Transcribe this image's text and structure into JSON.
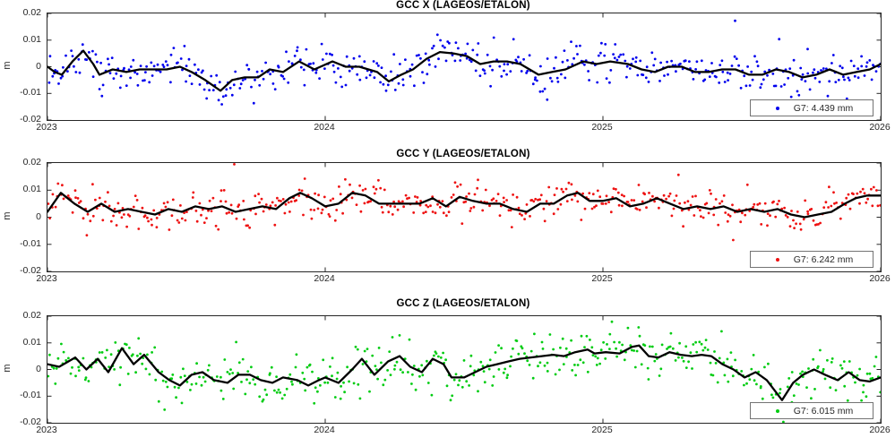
{
  "figure": {
    "background": "#ffffff",
    "axis_color": "#262626",
    "smooth_line_color": "#000000",
    "legend_border_color": "#737373"
  },
  "chart_data": [
    {
      "type": "scatter",
      "title": "GCC X (LAGEOS/ETALON)",
      "ylabel": "m",
      "legend": "G7: 4.439 mm",
      "xlim": [
        2023,
        2026
      ],
      "ylim": [
        -0.02,
        0.02
      ],
      "xticks": [
        2023,
        2024,
        2025,
        2026
      ],
      "xtick_labels": [
        "2023",
        "2024",
        "2025",
        "2026"
      ],
      "yticks": [
        0.02,
        0.01,
        0,
        -0.01,
        -0.02
      ],
      "ytick_labels": [
        "0.02",
        "0.01",
        "0",
        "-0.01",
        "-0.02"
      ],
      "grid": false,
      "legend_position": "bottom-right",
      "scatter": {
        "name": "gcc-x-daily-estimates",
        "color": "#0000ee",
        "count": 480,
        "sigma": 0.0036,
        "outlier_prob": 0.05,
        "outlier_scale": 1.9,
        "seed": 12345,
        "dot_radius": 1.4
      },
      "line": {
        "name": "gcc-x-smoothed",
        "color": "#000000",
        "width": 2.3,
        "points": [
          [
            2023.0,
            0.0
          ],
          [
            2023.026,
            -0.002
          ],
          [
            2023.052,
            -0.003
          ],
          [
            2023.09,
            0.002
          ],
          [
            2023.129,
            0.006
          ],
          [
            2023.165,
            0.001
          ],
          [
            2023.187,
            -0.003
          ],
          [
            2023.235,
            -0.001
          ],
          [
            2023.284,
            -0.002
          ],
          [
            2023.332,
            -0.001
          ],
          [
            2023.381,
            -0.001
          ],
          [
            2023.429,
            -0.001
          ],
          [
            2023.477,
            0.0
          ],
          [
            2023.519,
            -0.002
          ],
          [
            2023.568,
            -0.005
          ],
          [
            2023.623,
            -0.009
          ],
          [
            2023.665,
            -0.005
          ],
          [
            2023.71,
            -0.004
          ],
          [
            2023.758,
            -0.004
          ],
          [
            2023.8,
            -0.001
          ],
          [
            2023.848,
            -0.002
          ],
          [
            2023.906,
            0.002
          ],
          [
            2023.961,
            -0.001
          ],
          [
            2024.026,
            0.002
          ],
          [
            2024.074,
            0.0
          ],
          [
            2024.123,
            0.0
          ],
          [
            2024.187,
            -0.002
          ],
          [
            2024.229,
            -0.0055
          ],
          [
            2024.274,
            -0.003
          ],
          [
            2024.316,
            -0.001
          ],
          [
            2024.365,
            0.003
          ],
          [
            2024.413,
            0.0055
          ],
          [
            2024.461,
            0.005
          ],
          [
            2024.51,
            0.004
          ],
          [
            2024.558,
            0.001
          ],
          [
            2024.606,
            0.002
          ],
          [
            2024.655,
            0.002
          ],
          [
            2024.703,
            0.001
          ],
          [
            2024.768,
            -0.003
          ],
          [
            2024.816,
            -0.002
          ],
          [
            2024.865,
            -0.001
          ],
          [
            2024.929,
            0.002
          ],
          [
            2024.977,
            0.001
          ],
          [
            2025.026,
            0.002
          ],
          [
            2025.09,
            0.001
          ],
          [
            2025.139,
            -0.001
          ],
          [
            2025.187,
            -0.002
          ],
          [
            2025.235,
            0.0
          ],
          [
            2025.284,
            0.0
          ],
          [
            2025.332,
            -0.002
          ],
          [
            2025.381,
            -0.002
          ],
          [
            2025.429,
            -0.001
          ],
          [
            2025.477,
            -0.001
          ],
          [
            2025.526,
            -0.003
          ],
          [
            2025.574,
            -0.003
          ],
          [
            2025.623,
            -0.001
          ],
          [
            2025.671,
            -0.002
          ],
          [
            2025.719,
            -0.004
          ],
          [
            2025.768,
            -0.003
          ],
          [
            2025.816,
            -0.001
          ],
          [
            2025.865,
            -0.003
          ],
          [
            2025.913,
            -0.002
          ],
          [
            2025.961,
            -0.001
          ],
          [
            2026.0,
            0.001
          ]
        ]
      }
    },
    {
      "type": "scatter",
      "title": "GCC Y (LAGEOS/ETALON)",
      "ylabel": "m",
      "legend": "G7: 6.242 mm",
      "xlim": [
        2023,
        2026
      ],
      "ylim": [
        -0.02,
        0.02
      ],
      "xticks": [
        2023,
        2024,
        2025,
        2026
      ],
      "xtick_labels": [
        "2023",
        "2024",
        "2025",
        "2026"
      ],
      "yticks": [
        0.02,
        0.01,
        0,
        -0.01,
        -0.02
      ],
      "ytick_labels": [
        "0.02",
        "0.01",
        "0",
        "-0.01",
        "-0.02"
      ],
      "grid": false,
      "legend_position": "bottom-right",
      "scatter": {
        "name": "gcc-y-daily-estimates",
        "color": "#ee1111",
        "count": 480,
        "sigma": 0.0031,
        "outlier_prob": 0.05,
        "outlier_scale": 1.9,
        "seed": 54321,
        "dot_radius": 1.4
      },
      "line": {
        "name": "gcc-y-smoothed",
        "color": "#000000",
        "width": 2.3,
        "points": [
          [
            2023.0,
            0.002
          ],
          [
            2023.048,
            0.009
          ],
          [
            2023.097,
            0.005
          ],
          [
            2023.145,
            0.002
          ],
          [
            2023.194,
            0.005
          ],
          [
            2023.242,
            0.002
          ],
          [
            2023.29,
            0.003
          ],
          [
            2023.339,
            0.002
          ],
          [
            2023.387,
            0.001
          ],
          [
            2023.435,
            0.003
          ],
          [
            2023.484,
            0.002
          ],
          [
            2023.532,
            0.004
          ],
          [
            2023.581,
            0.003
          ],
          [
            2023.629,
            0.004
          ],
          [
            2023.677,
            0.002
          ],
          [
            2023.726,
            0.003
          ],
          [
            2023.774,
            0.004
          ],
          [
            2023.823,
            0.003
          ],
          [
            2023.871,
            0.007
          ],
          [
            2023.91,
            0.009
          ],
          [
            2023.952,
            0.007
          ],
          [
            2024.0,
            0.004
          ],
          [
            2024.048,
            0.005
          ],
          [
            2024.097,
            0.009
          ],
          [
            2024.145,
            0.008
          ],
          [
            2024.194,
            0.005
          ],
          [
            2024.242,
            0.005
          ],
          [
            2024.29,
            0.005
          ],
          [
            2024.339,
            0.005
          ],
          [
            2024.387,
            0.007
          ],
          [
            2024.435,
            0.004
          ],
          [
            2024.484,
            0.0075
          ],
          [
            2024.532,
            0.006
          ],
          [
            2024.581,
            0.005
          ],
          [
            2024.629,
            0.005
          ],
          [
            2024.677,
            0.003
          ],
          [
            2024.726,
            0.002
          ],
          [
            2024.774,
            0.005
          ],
          [
            2024.823,
            0.005
          ],
          [
            2024.871,
            0.008
          ],
          [
            2024.91,
            0.009
          ],
          [
            2024.952,
            0.006
          ],
          [
            2025.0,
            0.006
          ],
          [
            2025.048,
            0.007
          ],
          [
            2025.097,
            0.004
          ],
          [
            2025.145,
            0.005
          ],
          [
            2025.194,
            0.007
          ],
          [
            2025.242,
            0.005
          ],
          [
            2025.29,
            0.003
          ],
          [
            2025.339,
            0.004
          ],
          [
            2025.387,
            0.003
          ],
          [
            2025.435,
            0.004
          ],
          [
            2025.484,
            0.002
          ],
          [
            2025.532,
            0.003
          ],
          [
            2025.581,
            0.002
          ],
          [
            2025.629,
            0.003
          ],
          [
            2025.677,
            0.001
          ],
          [
            2025.726,
            0.0
          ],
          [
            2025.774,
            0.001
          ],
          [
            2025.823,
            0.002
          ],
          [
            2025.871,
            0.005
          ],
          [
            2025.91,
            0.007
          ],
          [
            2025.952,
            0.008
          ],
          [
            2026.0,
            0.008
          ]
        ]
      }
    },
    {
      "type": "scatter",
      "title": "GCC Z (LAGEOS/ETALON)",
      "ylabel": "m",
      "legend": "G7: 6.015 mm",
      "xlim": [
        2023,
        2026
      ],
      "ylim": [
        -0.02,
        0.02
      ],
      "xticks": [
        2023,
        2024,
        2025,
        2026
      ],
      "xtick_labels": [
        "2023",
        "2024",
        "2025",
        "2026"
      ],
      "yticks": [
        0.02,
        0.01,
        0,
        -0.01,
        -0.02
      ],
      "ytick_labels": [
        "0.02",
        "0.01",
        "0",
        "-0.01",
        "-0.02"
      ],
      "grid": false,
      "legend_position": "bottom-right",
      "scatter": {
        "name": "gcc-z-daily-estimates",
        "color": "#00cc11",
        "count": 480,
        "sigma": 0.0042,
        "outlier_prob": 0.05,
        "outlier_scale": 1.8,
        "seed": 98765,
        "dot_radius": 1.4
      },
      "line": {
        "name": "gcc-z-smoothed",
        "color": "#000000",
        "width": 2.3,
        "points": [
          [
            2023.0,
            0.002
          ],
          [
            2023.042,
            0.001
          ],
          [
            2023.1,
            0.0045
          ],
          [
            2023.14,
            0.0
          ],
          [
            2023.181,
            0.004
          ],
          [
            2023.219,
            -0.001
          ],
          [
            2023.268,
            0.008
          ],
          [
            2023.31,
            0.002
          ],
          [
            2023.348,
            0.0055
          ],
          [
            2023.4,
            -0.001
          ],
          [
            2023.439,
            -0.004
          ],
          [
            2023.477,
            -0.006
          ],
          [
            2023.519,
            -0.002
          ],
          [
            2023.558,
            -0.001
          ],
          [
            2023.6,
            -0.004
          ],
          [
            2023.648,
            -0.005
          ],
          [
            2023.687,
            -0.002
          ],
          [
            2023.729,
            -0.002
          ],
          [
            2023.768,
            -0.004
          ],
          [
            2023.81,
            -0.005
          ],
          [
            2023.848,
            -0.003
          ],
          [
            2023.9,
            -0.004
          ],
          [
            2023.939,
            -0.006
          ],
          [
            2023.977,
            -0.004
          ],
          [
            2024.0,
            -0.003
          ],
          [
            2024.048,
            -0.005
          ],
          [
            2024.097,
            0.0
          ],
          [
            2024.132,
            0.004
          ],
          [
            2024.177,
            -0.002
          ],
          [
            2024.226,
            0.003
          ],
          [
            2024.268,
            0.005
          ],
          [
            2024.306,
            0.001
          ],
          [
            2024.348,
            -0.001
          ],
          [
            2024.387,
            0.004
          ],
          [
            2024.426,
            0.002
          ],
          [
            2024.455,
            -0.003
          ],
          [
            2024.5,
            -0.003
          ],
          [
            2024.54,
            -0.001
          ],
          [
            2024.58,
            0.001
          ],
          [
            2024.619,
            0.002
          ],
          [
            2024.658,
            0.003
          ],
          [
            2024.7,
            0.004
          ],
          [
            2024.74,
            0.0045
          ],
          [
            2024.78,
            0.005
          ],
          [
            2024.82,
            0.0055
          ],
          [
            2024.86,
            0.005
          ],
          [
            2024.9,
            0.0065
          ],
          [
            2024.945,
            0.0075
          ],
          [
            2024.97,
            0.006
          ],
          [
            2025.01,
            0.0065
          ],
          [
            2025.06,
            0.006
          ],
          [
            2025.105,
            0.0085
          ],
          [
            2025.13,
            0.009
          ],
          [
            2025.165,
            0.005
          ],
          [
            2025.2,
            0.0045
          ],
          [
            2025.24,
            0.0065
          ],
          [
            2025.28,
            0.0055
          ],
          [
            2025.32,
            0.005
          ],
          [
            2025.355,
            0.0055
          ],
          [
            2025.39,
            0.005
          ],
          [
            2025.43,
            0.002
          ],
          [
            2025.47,
            0.0
          ],
          [
            2025.51,
            -0.003
          ],
          [
            2025.55,
            -0.001
          ],
          [
            2025.59,
            -0.004
          ],
          [
            2025.645,
            -0.0115
          ],
          [
            2025.685,
            -0.005
          ],
          [
            2025.72,
            -0.002
          ],
          [
            2025.76,
            0.0
          ],
          [
            2025.8,
            -0.002
          ],
          [
            2025.845,
            -0.004
          ],
          [
            2025.885,
            -0.001
          ],
          [
            2025.925,
            -0.004
          ],
          [
            2025.96,
            -0.0045
          ],
          [
            2026.0,
            -0.003
          ]
        ]
      }
    }
  ]
}
